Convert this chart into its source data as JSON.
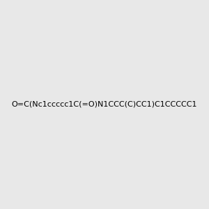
{
  "smiles": "O=C(Nc1ccccc1C(=O)N1CCC(C)CC1)C1CCCCC1",
  "image_size": 300,
  "background_color": "#e8e8e8",
  "bond_color": "#4a7a6a",
  "atom_colors": {
    "N": "#0000cc",
    "O": "#cc0000",
    "H_label": "#4a9a8a"
  },
  "title": "",
  "dpi": 100
}
